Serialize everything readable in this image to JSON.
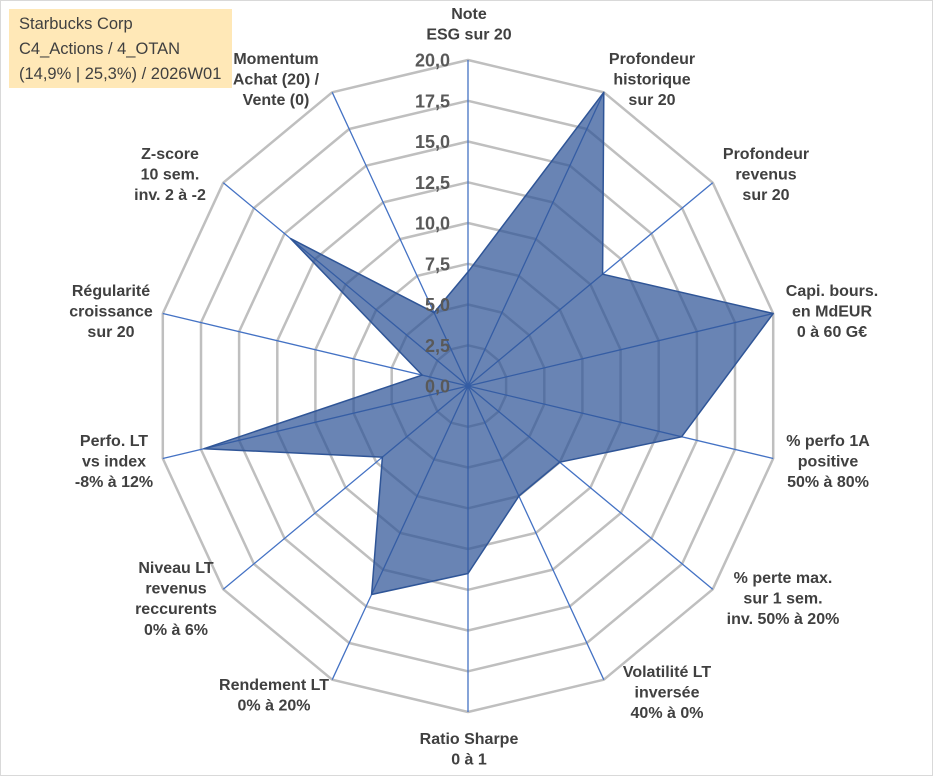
{
  "title_box": {
    "lines": [
      "Starbucks Corp",
      "C4_Actions / 4_OTAN",
      "(14,9% | 25,3%) / 2026W01"
    ]
  },
  "colors": {
    "title_box_background": "#FFE8B7",
    "title_text": "#404040",
    "series_fill": "#2F5597",
    "series_line": "#2F5597",
    "axis_line": "#4472C4",
    "grid": "#BFBFBF",
    "axis_labels": "#404040",
    "tick_labels": "#595959"
  },
  "chart_data": {
    "type": "radar",
    "categories": [
      [
        "Note",
        "ESG sur 20"
      ],
      [
        "Profondeur",
        "historique",
        "sur 20"
      ],
      [
        "Profondeur",
        "revenus",
        "sur 20"
      ],
      [
        "Capi. bours.",
        "en MdEUR",
        "0 à 60 G€"
      ],
      [
        "% perfo 1A",
        "positive",
        "50% à 80%"
      ],
      [
        "% perte max.",
        "sur 1 sem.",
        "inv. 50% à 20%"
      ],
      [
        "Volatilité LT",
        "inversée",
        "40% à 0%"
      ],
      [
        "Ratio Sharpe",
        "0 à 1"
      ],
      [
        "Rendement LT",
        "0% à 20%"
      ],
      [
        "Niveau LT",
        "revenus",
        "reccurents",
        "0% à 6%"
      ],
      [
        "Perfo. LT",
        "vs index",
        "-8% à 12%"
      ],
      [
        "Régularité",
        "croissance",
        "sur 20"
      ],
      [
        "Z-score",
        "10 sem.",
        "inv. 2 à -2"
      ],
      [
        "Momentum",
        "Achat (20) /",
        "Vente (0)"
      ]
    ],
    "series": [
      {
        "values": [
          7,
          20,
          11,
          20,
          14,
          7.5,
          7.5,
          11.5,
          14.2,
          7,
          17.3,
          3,
          14.5,
          5
        ]
      }
    ],
    "rlim": [
      0,
      20
    ],
    "ticks": [
      0,
      2.5,
      5,
      7.5,
      10,
      12.5,
      15,
      17.5,
      20
    ],
    "tick_labels": [
      "0,0",
      "2,5",
      "5,0",
      "7,5",
      "10,0",
      "12,5",
      "15,0",
      "17,5",
      "20,0"
    ],
    "grid": true,
    "legend": "none"
  }
}
